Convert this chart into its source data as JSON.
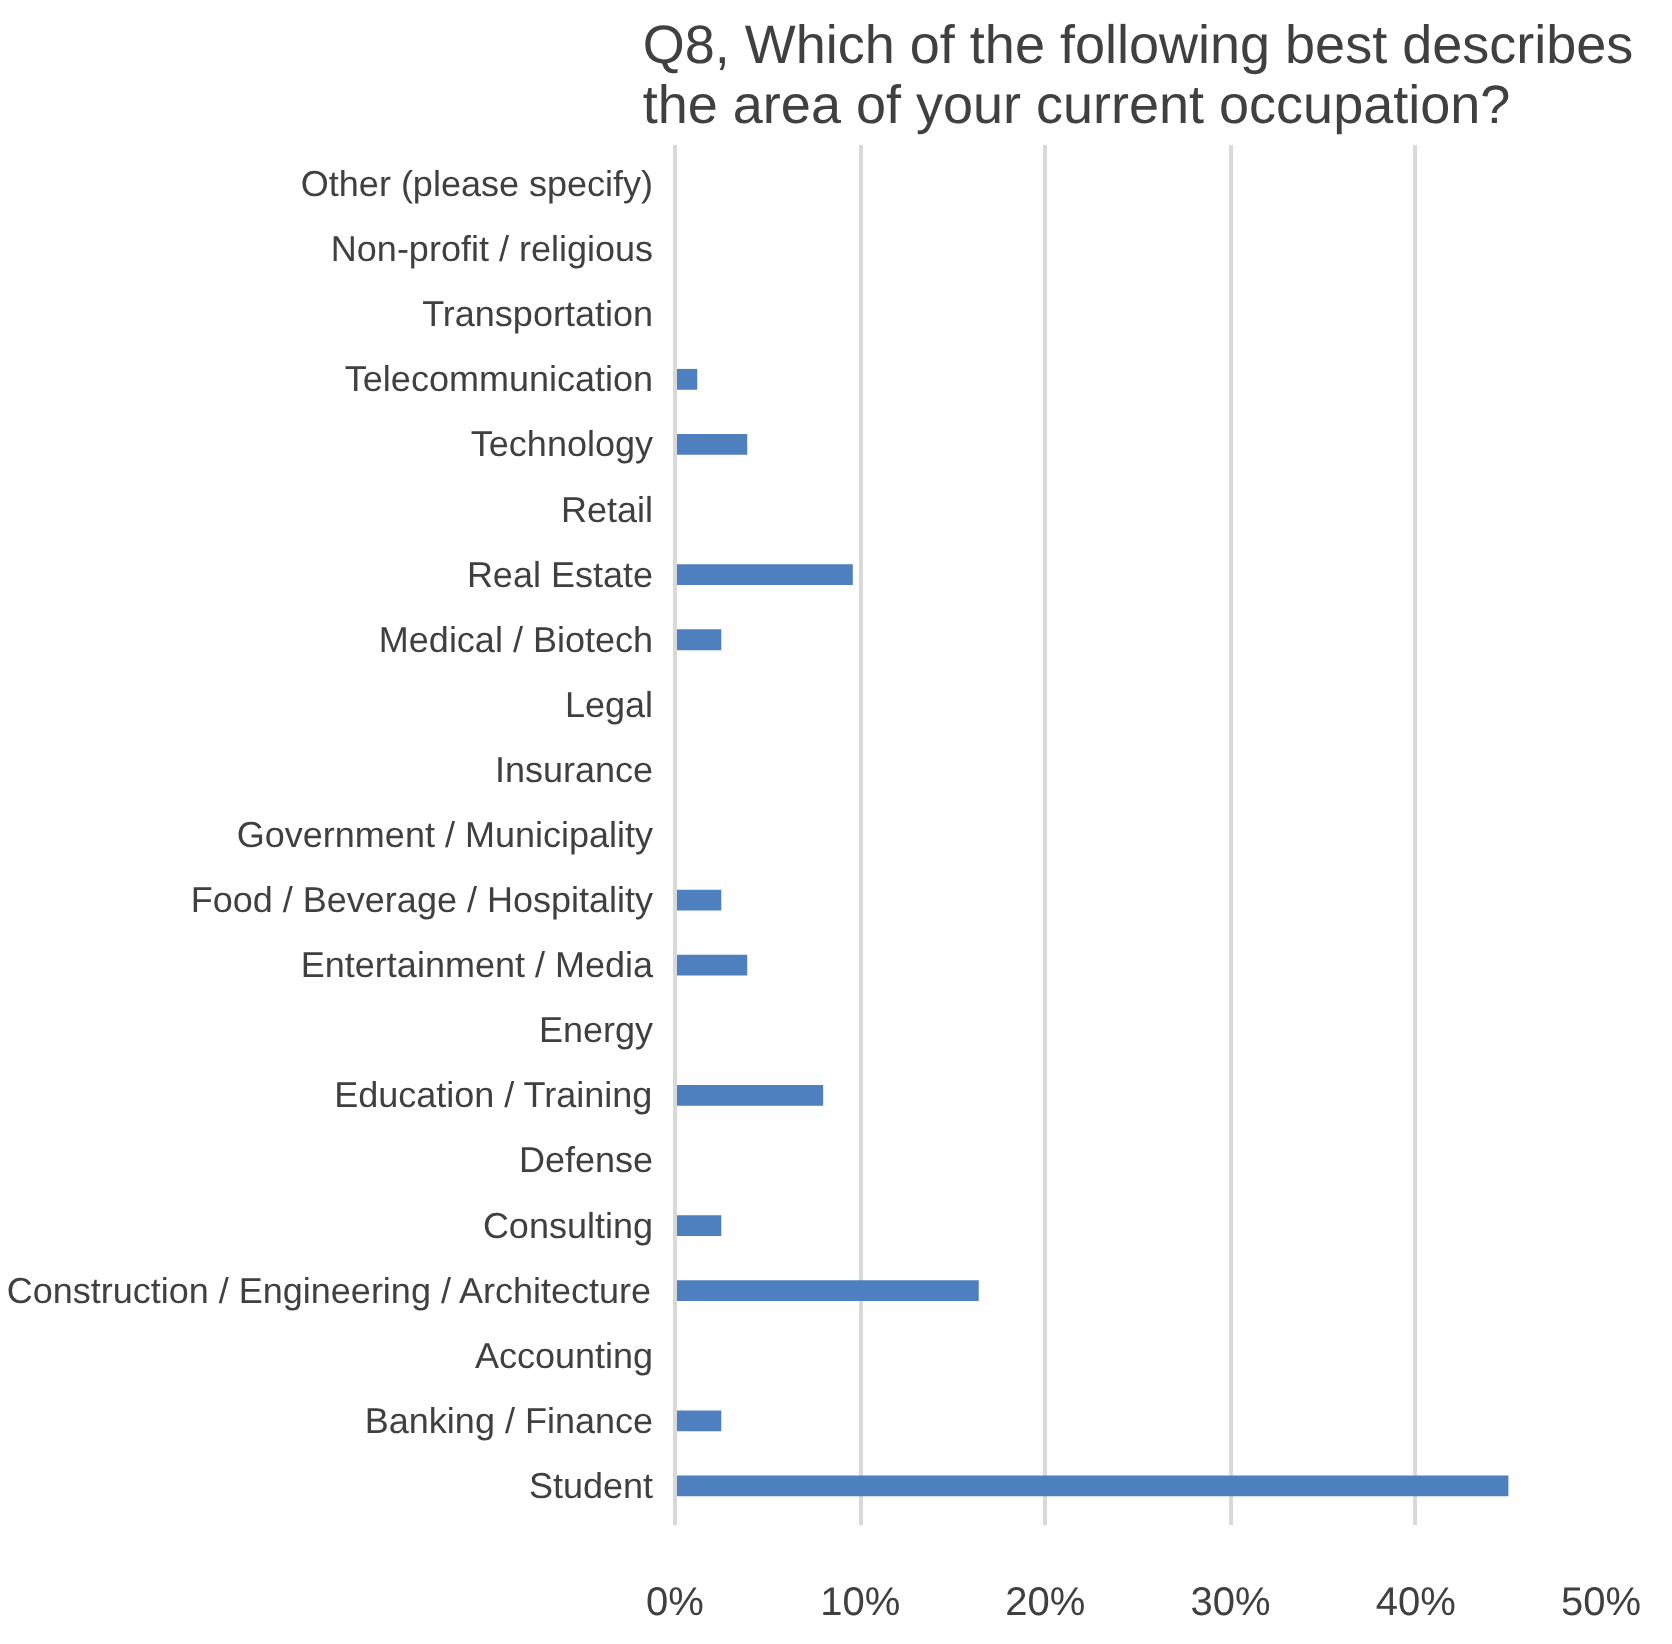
{
  "chart_data": {
    "type": "bar",
    "orientation": "horizontal",
    "title": "Q8, Which of the following best describes\nthe area of your current occupation?",
    "categories": [
      "Other (please specify)",
      "Non-profit / religious",
      "Transportation",
      "Telecommunication",
      "Technology",
      "Retail",
      "Real Estate",
      "Medical / Biotech",
      "Legal",
      "Insurance",
      "Government / Municipality",
      "Food / Beverage / Hospitality",
      "Entertainment / Media",
      "Energy",
      "Education / Training",
      "Defense",
      "Consulting",
      "Construction / Engineering / Architecture",
      "Accounting",
      "Banking / Finance",
      "Student"
    ],
    "values": [
      0,
      0,
      0,
      1.2,
      3.9,
      0,
      9.6,
      2.5,
      0,
      0,
      0,
      2.5,
      3.9,
      0,
      8.0,
      0,
      2.5,
      16.4,
      0,
      2.5,
      45
    ],
    "color": "#4e7fbf",
    "xlim": [
      0,
      50
    ],
    "xticks": [
      {
        "value": 0,
        "label": "0%"
      },
      {
        "value": 10,
        "label": "10%"
      },
      {
        "value": 20,
        "label": "20%"
      },
      {
        "value": 30,
        "label": "30%"
      },
      {
        "value": 40,
        "label": "40%"
      },
      {
        "value": 50,
        "label": "50%"
      }
    ],
    "grid": "x"
  }
}
